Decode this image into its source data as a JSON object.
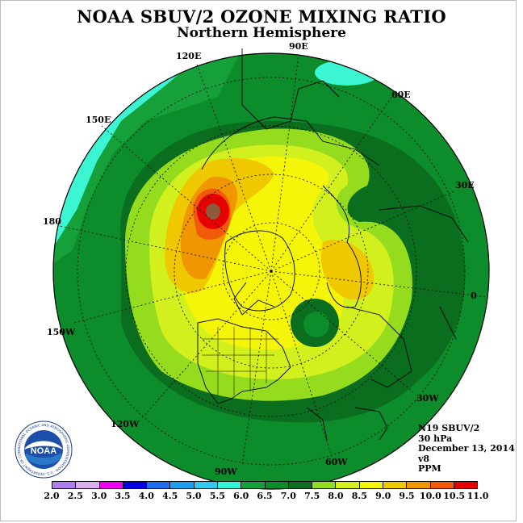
{
  "title": "NOAA SBUV/2 OZONE MIXING RATIO",
  "subtitle": "Northern Hemisphere",
  "longitude_labels": [
    "90E",
    "60E",
    "30E",
    "0",
    "30W",
    "60W",
    "90W",
    "120W",
    "150W",
    "180",
    "150E",
    "120E"
  ],
  "info": {
    "satellite": "N19 SBUV/2",
    "pressure": "30 hPa",
    "date": "December 13, 2014",
    "version": "v8",
    "units": "PPM"
  },
  "logo": {
    "text": "NOAA",
    "ring_text": "NATIONAL OCEANIC AND ATMOSPHERIC ADMINISTRATION · U.S. DEPARTMENT OF COMMERCE"
  },
  "colorbar": {
    "ticks": [
      "2.0",
      "2.5",
      "3.0",
      "3.5",
      "4.0",
      "4.5",
      "5.0",
      "5.5",
      "6.0",
      "6.5",
      "7.0",
      "7.5",
      "8.0",
      "8.5",
      "9.0",
      "9.5",
      "10.0",
      "10.5",
      "11.0"
    ],
    "colors": [
      "#b07ee8",
      "#dcb0f0",
      "#f000f0",
      "#0000e0",
      "#1e6ef0",
      "#1ea0f0",
      "#32c8f0",
      "#30f5d8",
      "#14a03c",
      "#0a8c28",
      "#0a6e1e",
      "#96dc1e",
      "#d2f01e",
      "#f5f50a",
      "#f0c800",
      "#f09600",
      "#f05a0a",
      "#e60000",
      "#8c5a3c"
    ]
  },
  "map_colors": {
    "c55": "#3cf5d2",
    "c60": "#16a03a",
    "c65": "#0c8c2a",
    "c70": "#0a6e1e",
    "c75": "#96dc1e",
    "c80": "#d2f01e",
    "c85": "#f5f50a",
    "c90": "#f0c800",
    "c95": "#f09600",
    "c100": "#f05a0a",
    "c105": "#e60000",
    "c110": "#8c5a3c"
  }
}
